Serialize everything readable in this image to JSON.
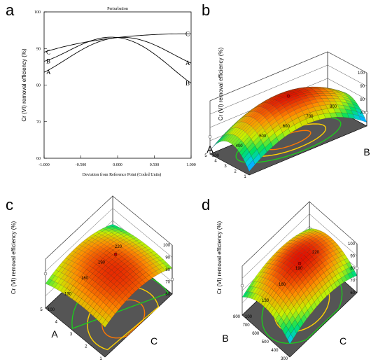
{
  "panels": {
    "a": "a",
    "b": "b",
    "c": "c",
    "d": "d"
  },
  "colors": {
    "surface_scale": [
      "#1e3cff",
      "#00c8ff",
      "#00e060",
      "#c8f000",
      "#ff8c00",
      "#e01000"
    ],
    "floor": "#555555",
    "contour": [
      "#1ec81e",
      "#ffd200",
      "#ff7800"
    ]
  },
  "chart_data": [
    {
      "type": "line",
      "title": "Perturbation",
      "xlabel": "Deviation from Reference Point (Coded Units)",
      "ylabel": "Cr (VI) removal efficiency (%)",
      "xlim": [
        -1.0,
        1.0
      ],
      "ylim": [
        60,
        100
      ],
      "xticks": [
        "-1.000",
        "-0.500",
        "0.000",
        "0.500",
        "1.000"
      ],
      "yticks": [
        "60",
        "70",
        "80",
        "90",
        "100"
      ],
      "x": [
        -1.0,
        -0.5,
        0.0,
        0.5,
        1.0
      ],
      "series": [
        {
          "name": "A",
          "values": [
            83.5,
            89.5,
            93.0,
            91.0,
            86.0
          ],
          "label_pos": "both"
        },
        {
          "name": "B",
          "values": [
            86.5,
            91.0,
            93.0,
            88.5,
            80.5
          ],
          "label_pos": "both"
        },
        {
          "name": "C",
          "values": [
            89.0,
            91.5,
            93.0,
            93.8,
            94.0
          ],
          "label_pos": "both"
        }
      ],
      "grid": false,
      "legend": "inline"
    },
    {
      "type": "surface",
      "xlabel": "A",
      "ylabel": "B",
      "zlabel": "Cr (VI) removal efficiency (%)",
      "x_ticks": [
        "1",
        "2",
        "3",
        "4",
        "5"
      ],
      "y_ticks": [
        "300",
        "400",
        "500",
        "600",
        "700",
        "800"
      ],
      "z_ticks": [
        "70",
        "80",
        "90",
        "100"
      ],
      "zlim": [
        60,
        100
      ]
    },
    {
      "type": "surface",
      "xlabel": "A",
      "ylabel": "C",
      "zlabel": "Cr (VI) removal efficiency (%)",
      "x_ticks": [
        "1",
        "2",
        "3",
        "4",
        "5"
      ],
      "y_ticks": [
        "100",
        "130",
        "160",
        "190",
        "220"
      ],
      "z_ticks": [
        "60",
        "70",
        "80",
        "90",
        "100"
      ],
      "zlim": [
        60,
        100
      ]
    },
    {
      "type": "surface",
      "xlabel": "B",
      "ylabel": "C",
      "zlabel": "Cr (VI) removal efficiency (%)",
      "x_ticks": [
        "300",
        "400",
        "500",
        "600",
        "700",
        "800"
      ],
      "y_ticks": [
        "100",
        "130",
        "160",
        "190",
        "220"
      ],
      "z_ticks": [
        "60",
        "70",
        "80",
        "90",
        "100"
      ],
      "zlim": [
        60,
        100
      ]
    }
  ]
}
